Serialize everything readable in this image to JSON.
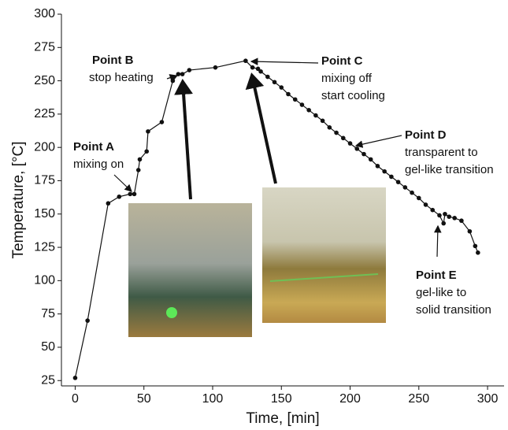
{
  "chart_data": {
    "type": "line",
    "x_label": "Time, [min]",
    "y_label": "Temperature, [°C]",
    "x": [
      0,
      9,
      24,
      32,
      40,
      43,
      46,
      47,
      52,
      53,
      63,
      71,
      75,
      78,
      83,
      102,
      124,
      129,
      133,
      135,
      140,
      145,
      150,
      155,
      160,
      165,
      170,
      175,
      180,
      185,
      190,
      195,
      200,
      205,
      210,
      215,
      220,
      225,
      230,
      235,
      240,
      245,
      250,
      255,
      260,
      265,
      268,
      269,
      272,
      276,
      281,
      287,
      291,
      293
    ],
    "series": [
      {
        "color": "#111111",
        "values": [
          27,
          70,
          158,
          163,
          165,
          165,
          183,
          191,
          197,
          212,
          219,
          250,
          255,
          255,
          258,
          260,
          265,
          260,
          259,
          257,
          253,
          249,
          245,
          240,
          236,
          232,
          228,
          224,
          220,
          215,
          211,
          207,
          203,
          199,
          195,
          191,
          186,
          182,
          178,
          174,
          170,
          166,
          162,
          157,
          153,
          149,
          143,
          150,
          148,
          147,
          145,
          137,
          126,
          121
        ]
      }
    ],
    "xlim": [
      -10,
      312
    ],
    "ylim": [
      21,
      300
    ],
    "xticks": [
      0,
      50,
      100,
      150,
      200,
      250,
      300
    ],
    "yticks": [
      25,
      50,
      75,
      100,
      125,
      150,
      175,
      200,
      225,
      250,
      275,
      300
    ],
    "annotations": [
      {
        "title": "Point A",
        "text": [
          "mixing on"
        ]
      },
      {
        "title": "Point B",
        "text": [
          "stop heating"
        ]
      },
      {
        "title": "Point C",
        "text": [
          "mixing off",
          "start cooling"
        ]
      },
      {
        "title": "Point D",
        "text": [
          "transparent to",
          "gel-like transition"
        ]
      },
      {
        "title": "Point E",
        "text": [
          "gel-like to",
          "solid transition"
        ]
      }
    ]
  }
}
